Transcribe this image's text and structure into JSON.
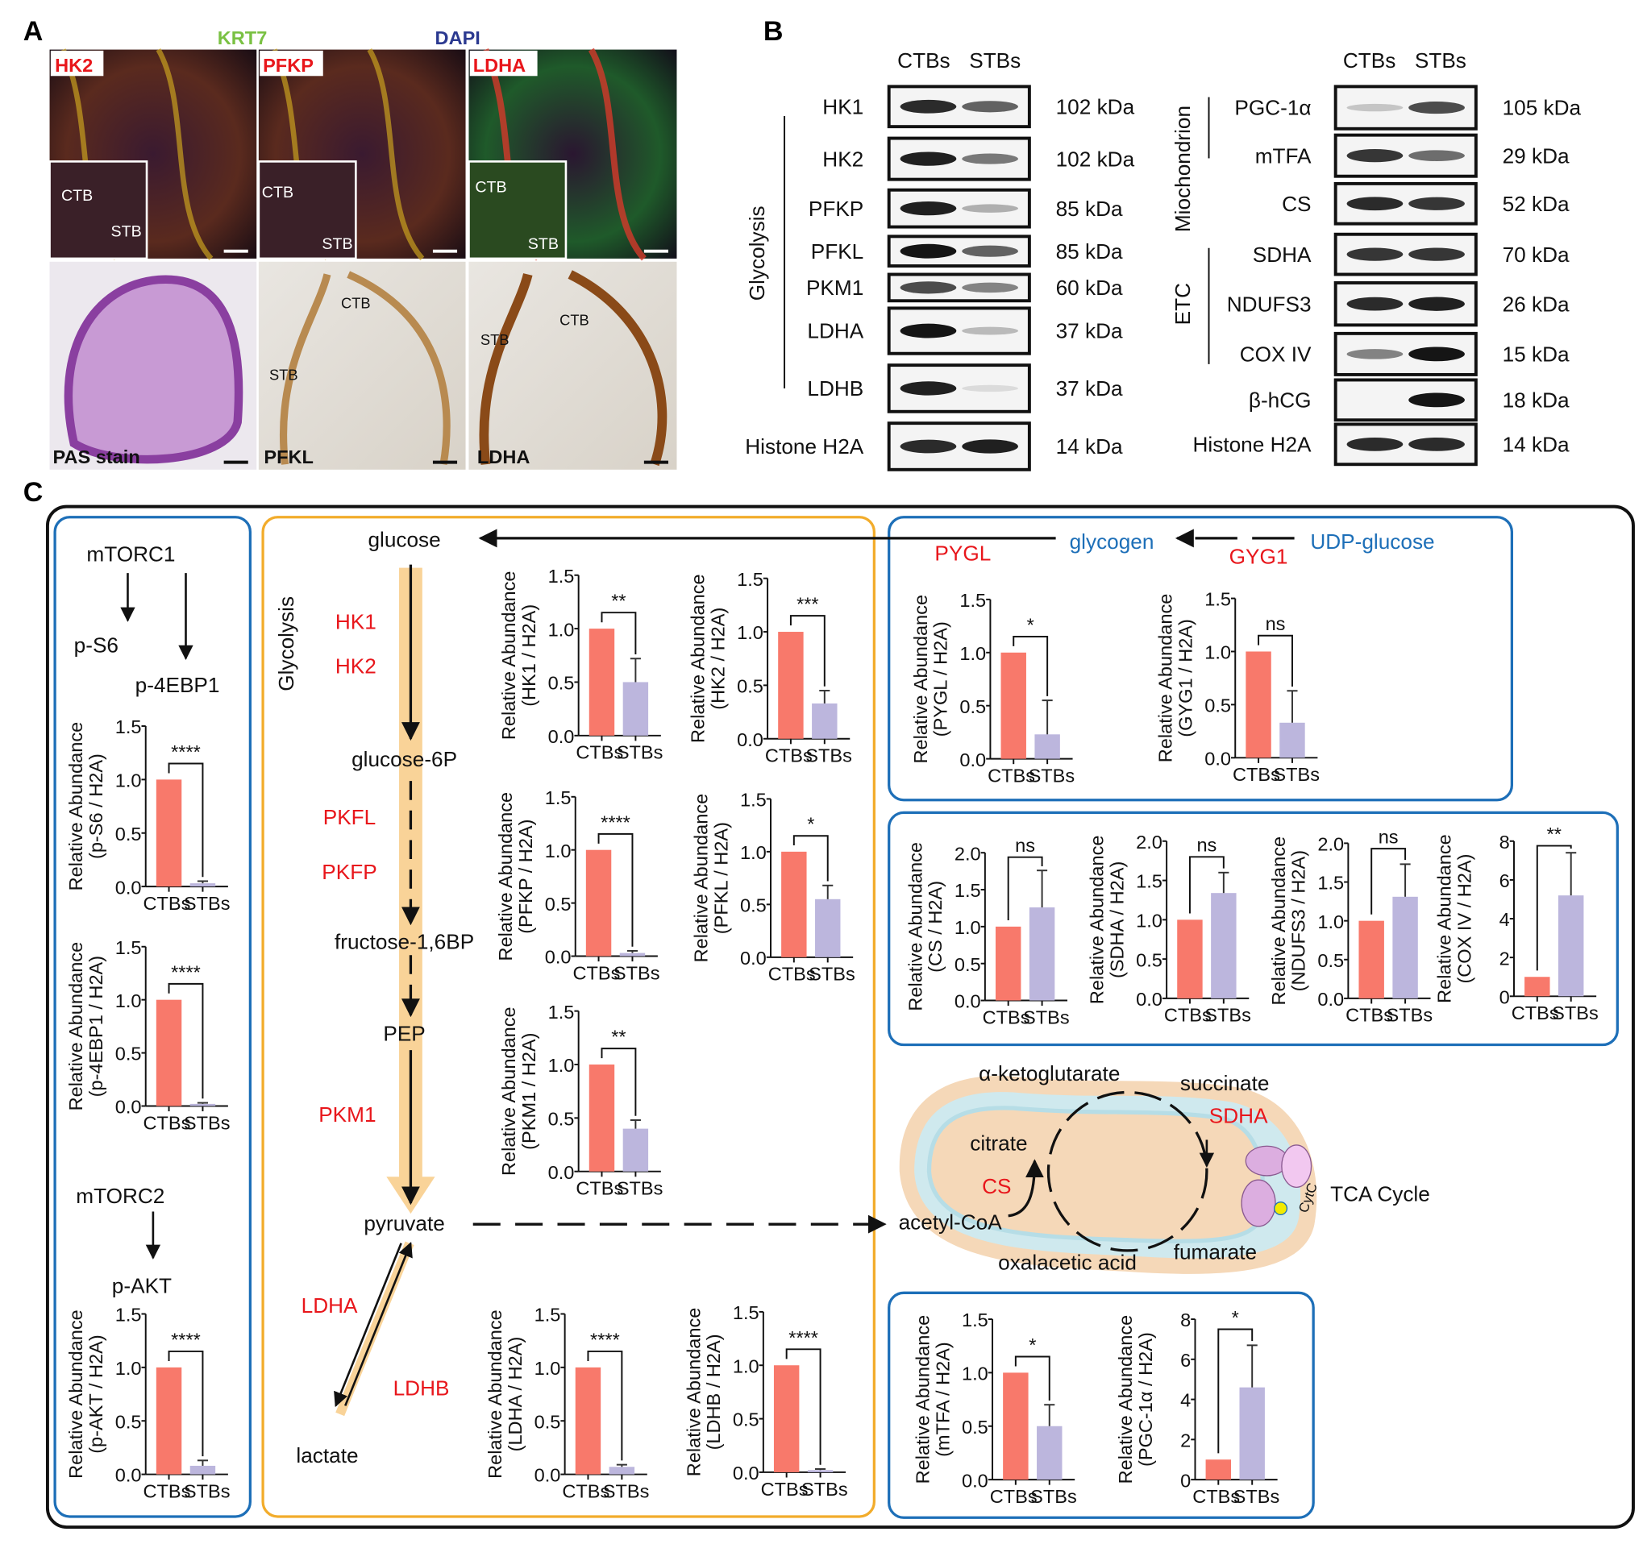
{
  "panel_labels": {
    "a": "A",
    "b": "B",
    "c": "C"
  },
  "panel_a": {
    "top_labels": {
      "hk2": "HK2",
      "krt7": "KRT7",
      "pfkp": "PFKP",
      "dapi": "DAPI",
      "ldha": "LDHA"
    },
    "inset_labels": {
      "ctb": "CTB",
      "stb": "STB"
    },
    "bottom_labels": {
      "pas": "PAS stain",
      "pfkl": "PFKL",
      "ldha": "LDHA"
    },
    "colors": {
      "hk2": "#e8161b",
      "krt7": "#7ac143",
      "dapi": "#2b3990"
    }
  },
  "panel_b": {
    "lanes": [
      "CTBs",
      "STBs"
    ],
    "group_glycolysis": "Glycolysis",
    "group_mito": "Miochondrion",
    "group_etc": "ETC",
    "left_blots": [
      {
        "protein": "HK1",
        "size": "102 kDa",
        "band_intensity": [
          0.85,
          0.6
        ]
      },
      {
        "protein": "HK2",
        "size": "102 kDa",
        "band_intensity": [
          0.9,
          0.5
        ]
      },
      {
        "protein": "PFKP",
        "size": "85 kDa",
        "band_intensity": [
          0.9,
          0.25
        ]
      },
      {
        "protein": "PFKL",
        "size": "85 kDa",
        "band_intensity": [
          0.95,
          0.6
        ]
      },
      {
        "protein": "PKM1",
        "size": "60 kDa",
        "band_intensity": [
          0.7,
          0.45
        ]
      },
      {
        "protein": "LDHA",
        "size": "37 kDa",
        "band_intensity": [
          0.95,
          0.2
        ]
      },
      {
        "protein": "LDHB",
        "size": "37 kDa",
        "band_intensity": [
          0.9,
          0.05
        ]
      },
      {
        "protein": "Histone H2A",
        "size": "14 kDa",
        "band_intensity": [
          0.85,
          0.9
        ]
      }
    ],
    "right_blots": [
      {
        "protein": "PGC-1α",
        "size": "105 kDa",
        "band_intensity": [
          0.15,
          0.7
        ]
      },
      {
        "protein": "mTFA",
        "size": "29 kDa",
        "band_intensity": [
          0.8,
          0.55
        ]
      },
      {
        "protein": "CS",
        "size": "52 kDa",
        "band_intensity": [
          0.85,
          0.8
        ]
      },
      {
        "protein": "SDHA",
        "size": "70 kDa",
        "band_intensity": [
          0.8,
          0.8
        ]
      },
      {
        "protein": "NDUFS3",
        "size": "26 kDa",
        "band_intensity": [
          0.85,
          0.9
        ]
      },
      {
        "protein": "COX IV",
        "size": "15 kDa",
        "band_intensity": [
          0.45,
          0.95
        ]
      },
      {
        "protein": "β-hCG",
        "size": "18 kDa",
        "band_intensity": [
          0.0,
          0.95
        ]
      },
      {
        "protein": "Histone H2A",
        "size": "14 kDa",
        "band_intensity": [
          0.85,
          0.85
        ]
      }
    ]
  },
  "panel_c": {
    "mtorc1": "mTORC1",
    "ps6": "p-S6",
    "p4ebp1": "p-4EBP1",
    "mtorc2": "mTORC2",
    "pakt": "p-AKT",
    "glycolysis": "Glycolysis",
    "metabolites": {
      "glucose": "glucose",
      "g6p": "glucose-6P",
      "f16bp": "fructose-1,6BP",
      "pep": "PEP",
      "pyruvate": "pyruvate",
      "lactate": "lactate",
      "glycogen": "glycogen",
      "udp_glucose": "UDP-glucose"
    },
    "enzymes": {
      "hk1": "HK1",
      "hk2": "HK2",
      "pkfl": "PKFL",
      "pkfp": "PKFP",
      "pkm1": "PKM1",
      "ldha": "LDHA",
      "ldhb": "LDHB",
      "pygl": "PYGL",
      "gyg1": "GYG1"
    },
    "tca": {
      "akg": "α-ketoglutarate",
      "succinate": "succinate",
      "sdha": "SDHA",
      "citrate": "citrate",
      "cs": "CS",
      "acetyl_coa": "acetyl-CoA",
      "oaa": "oxalacetic acid",
      "fumarate": "fumarate",
      "cytc": "CytC",
      "title": "TCA Cycle"
    },
    "colors": {
      "ctb": "#f8796b",
      "stb": "#bcb6dd",
      "enzyme": "#e8161b",
      "glycogen": "#1d6fb8",
      "box_blue": "#1d6fb8",
      "box_orange": "#f2ac2b"
    }
  },
  "chart_data": [
    {
      "type": "bar",
      "id": "ps6",
      "categories": [
        "CTBs",
        "STBs"
      ],
      "values": [
        1.0,
        0.03
      ],
      "errors": [
        0,
        0.02
      ],
      "ylabel": [
        "Relative Abundance",
        "(p-S6 / H2A)"
      ],
      "ylim": [
        0,
        1.5
      ],
      "ticks": [
        "0.0",
        "0.5",
        "1.0",
        "1.5"
      ],
      "significance": "****"
    },
    {
      "type": "bar",
      "id": "p4ebp1",
      "categories": [
        "CTBs",
        "STBs"
      ],
      "values": [
        1.0,
        0.02
      ],
      "errors": [
        0,
        0.01
      ],
      "ylabel": [
        "Relative Abundance",
        "(p-4EBP1 / H2A)"
      ],
      "ylim": [
        0,
        1.5
      ],
      "ticks": [
        "0.0",
        "0.5",
        "1.0",
        "1.5"
      ],
      "significance": "****"
    },
    {
      "type": "bar",
      "id": "pakt",
      "categories": [
        "CTBs",
        "STBs"
      ],
      "values": [
        1.0,
        0.08
      ],
      "errors": [
        0,
        0.05
      ],
      "ylabel": [
        "Relative Abundance",
        "(p-AKT / H2A)"
      ],
      "ylim": [
        0,
        1.5
      ],
      "ticks": [
        "0.0",
        "0.5",
        "1.0",
        "1.5"
      ],
      "significance": "****"
    },
    {
      "type": "bar",
      "id": "hk1",
      "categories": [
        "CTBs",
        "STBs"
      ],
      "values": [
        1.0,
        0.5
      ],
      "errors": [
        0,
        0.22
      ],
      "ylabel": [
        "Relative Abundance",
        "(HK1 / H2A)"
      ],
      "ylim": [
        0,
        1.5
      ],
      "ticks": [
        "0.0",
        "0.5",
        "1.0",
        "1.5"
      ],
      "significance": "**"
    },
    {
      "type": "bar",
      "id": "hk2",
      "categories": [
        "CTBs",
        "STBs"
      ],
      "values": [
        1.0,
        0.33
      ],
      "errors": [
        0,
        0.12
      ],
      "ylabel": [
        "Relative Abundance",
        "(HK2 / H2A)"
      ],
      "ylim": [
        0,
        1.5
      ],
      "ticks": [
        "0.0",
        "0.5",
        "1.0",
        "1.5"
      ],
      "significance": "***"
    },
    {
      "type": "bar",
      "id": "pfkp",
      "categories": [
        "CTBs",
        "STBs"
      ],
      "values": [
        1.0,
        0.03
      ],
      "errors": [
        0,
        0.02
      ],
      "ylabel": [
        "Relative Abundance",
        "(PFKP / H2A)"
      ],
      "ylim": [
        0,
        1.5
      ],
      "ticks": [
        "0.0",
        "0.5",
        "1.0",
        "1.5"
      ],
      "significance": "****"
    },
    {
      "type": "bar",
      "id": "pfkl",
      "categories": [
        "CTBs",
        "STBs"
      ],
      "values": [
        1.0,
        0.55
      ],
      "errors": [
        0,
        0.13
      ],
      "ylabel": [
        "Relative Abundance",
        "(PFKL / H2A)"
      ],
      "ylim": [
        0,
        1.5
      ],
      "ticks": [
        "0.0",
        "0.5",
        "1.0",
        "1.5"
      ],
      "significance": "*"
    },
    {
      "type": "bar",
      "id": "pkm1",
      "categories": [
        "CTBs",
        "STBs"
      ],
      "values": [
        1.0,
        0.4
      ],
      "errors": [
        0,
        0.08
      ],
      "ylabel": [
        "Relative Abundance",
        "(PKM1 / H2A)"
      ],
      "ylim": [
        0,
        1.5
      ],
      "ticks": [
        "0.0",
        "0.5",
        "1.0",
        "1.5"
      ],
      "significance": "**"
    },
    {
      "type": "bar",
      "id": "ldha",
      "categories": [
        "CTBs",
        "STBs"
      ],
      "values": [
        1.0,
        0.07
      ],
      "errors": [
        0,
        0.02
      ],
      "ylabel": [
        "Relative Abundance",
        "(LDHA / H2A)"
      ],
      "ylim": [
        0,
        1.5
      ],
      "ticks": [
        "0.0",
        "0.5",
        "1.0",
        "1.5"
      ],
      "significance": "****"
    },
    {
      "type": "bar",
      "id": "ldhb",
      "categories": [
        "CTBs",
        "STBs"
      ],
      "values": [
        1.0,
        0.02
      ],
      "errors": [
        0,
        0.01
      ],
      "ylabel": [
        "Relative Abundance",
        "(LDHB / H2A)"
      ],
      "ylim": [
        0,
        1.5
      ],
      "ticks": [
        "0.0",
        "0.5",
        "1.0",
        "1.5"
      ],
      "significance": "****"
    },
    {
      "type": "bar",
      "id": "pygl",
      "categories": [
        "CTBs",
        "STBs"
      ],
      "values": [
        1.0,
        0.23
      ],
      "errors": [
        0,
        0.32
      ],
      "ylabel": [
        "Relative Abundance",
        "(PYGL / H2A)"
      ],
      "ylim": [
        0,
        1.5
      ],
      "ticks": [
        "0.0",
        "0.5",
        "1.0",
        "1.5"
      ],
      "significance": "*"
    },
    {
      "type": "bar",
      "id": "gyg1",
      "categories": [
        "CTBs",
        "STBs"
      ],
      "values": [
        1.0,
        0.33
      ],
      "errors": [
        0,
        0.3
      ],
      "ylabel": [
        "Relative Abundance",
        "(GYG1 / H2A)"
      ],
      "ylim": [
        0,
        1.5
      ],
      "ticks": [
        "0.0",
        "0.5",
        "1.0",
        "1.5"
      ],
      "significance": "ns"
    },
    {
      "type": "bar",
      "id": "cs",
      "categories": [
        "CTBs",
        "STBs"
      ],
      "values": [
        1.0,
        1.26
      ],
      "errors": [
        0,
        0.5
      ],
      "ylabel": [
        "Relative Abundance",
        "(CS / H2A)"
      ],
      "ylim": [
        0,
        2.0
      ],
      "ticks": [
        "0.0",
        "0.5",
        "1.0",
        "1.5",
        "2.0"
      ],
      "significance": "ns"
    },
    {
      "type": "bar",
      "id": "sdha",
      "categories": [
        "CTBs",
        "STBs"
      ],
      "values": [
        1.0,
        1.34
      ],
      "errors": [
        0,
        0.26
      ],
      "ylabel": [
        "Relative Abundance",
        "(SDHA / H2A)"
      ],
      "ylim": [
        0,
        2.0
      ],
      "ticks": [
        "0.0",
        "0.5",
        "1.0",
        "1.5",
        "2.0"
      ],
      "significance": "ns"
    },
    {
      "type": "bar",
      "id": "ndufs3",
      "categories": [
        "CTBs",
        "STBs"
      ],
      "values": [
        1.0,
        1.31
      ],
      "errors": [
        0,
        0.42
      ],
      "ylabel": [
        "Relative Abundance",
        "(NDUFS3 / H2A)"
      ],
      "ylim": [
        0,
        2.0
      ],
      "ticks": [
        "0.0",
        "0.5",
        "1.0",
        "1.5",
        "2.0"
      ],
      "significance": "ns"
    },
    {
      "type": "bar",
      "id": "cox4",
      "categories": [
        "CTBs",
        "STBs"
      ],
      "values": [
        1.0,
        5.2
      ],
      "errors": [
        0,
        2.2
      ],
      "ylabel": [
        "Relative Abundance",
        "(COX IV / H2A)"
      ],
      "ylim": [
        0,
        8
      ],
      "ticks": [
        "0",
        "2",
        "4",
        "6",
        "8"
      ],
      "significance": "**"
    },
    {
      "type": "bar",
      "id": "mtfa",
      "categories": [
        "CTBs",
        "STBs"
      ],
      "values": [
        1.0,
        0.5
      ],
      "errors": [
        0,
        0.2
      ],
      "ylabel": [
        "Relative Abundance",
        "(mTFA / H2A)"
      ],
      "ylim": [
        0,
        1.5
      ],
      "ticks": [
        "0.0",
        "0.5",
        "1.0",
        "1.5"
      ],
      "significance": "*"
    },
    {
      "type": "bar",
      "id": "pgc1a",
      "categories": [
        "CTBs",
        "STBs"
      ],
      "values": [
        1.0,
        4.6
      ],
      "errors": [
        0,
        2.1
      ],
      "ylabel": [
        "Relative Abundance",
        "(PGC-1α / H2A)"
      ],
      "ylim": [
        0,
        8
      ],
      "ticks": [
        "0",
        "2",
        "4",
        "6",
        "8"
      ],
      "significance": "*"
    }
  ]
}
